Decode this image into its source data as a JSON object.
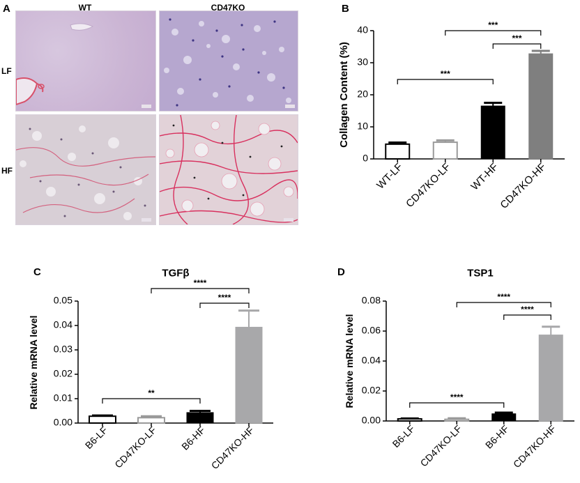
{
  "histology": {
    "panel_letter": "A",
    "columns": [
      "WT",
      "CD47KO"
    ],
    "rows": [
      "LF",
      "HF"
    ]
  },
  "chart_data": [
    {
      "panel_letter": "B",
      "type": "bar",
      "title": "",
      "ylabel": "Collagen Content (%)",
      "categories": [
        "WT-LF",
        "CD47KO-LF",
        "WT-HF",
        "CD47KO-HF"
      ],
      "values": [
        4.6,
        5.2,
        16.5,
        32.8
      ],
      "errors": [
        0.5,
        0.6,
        1.0,
        0.9
      ],
      "ylim": [
        0,
        40
      ],
      "yticks": [
        "0",
        "10",
        "20",
        "30",
        "40"
      ],
      "styles": [
        "open",
        "open-gray",
        "black",
        "gray"
      ],
      "significance": [
        {
          "from": 0,
          "to": 2,
          "label": "***"
        },
        {
          "from": 1,
          "to": 3,
          "label": "***"
        },
        {
          "from": 2,
          "to": 3,
          "label": "***"
        }
      ]
    },
    {
      "panel_letter": "C",
      "type": "bar",
      "title": "TGFβ",
      "ylabel": "Relative mRNA level",
      "categories": [
        "B6-LF",
        "CD47KO-LF",
        "B6-HF",
        "CD47KO-HF"
      ],
      "values": [
        0.0028,
        0.0022,
        0.0043,
        0.0393
      ],
      "errors": [
        0.0003,
        0.0006,
        0.0007,
        0.0068
      ],
      "ylim": [
        0,
        0.05
      ],
      "yticks": [
        "0.00",
        "0.01",
        "0.02",
        "0.03",
        "0.04",
        "0.05"
      ],
      "styles": [
        "open",
        "open-gray",
        "black",
        "gray-light"
      ],
      "significance": [
        {
          "from": 0,
          "to": 2,
          "label": "**"
        },
        {
          "from": 1,
          "to": 3,
          "label": "****"
        },
        {
          "from": 2,
          "to": 3,
          "label": "****"
        }
      ]
    },
    {
      "panel_letter": "D",
      "type": "bar",
      "title": "TSP1",
      "ylabel": "Relative mRNA level",
      "categories": [
        "B6-LF",
        "CD47KO-LF",
        "B6-HF",
        "CD47KO-HF"
      ],
      "values": [
        0.0014,
        0.0011,
        0.0048,
        0.0574
      ],
      "errors": [
        0.0003,
        0.0007,
        0.0008,
        0.0055
      ],
      "ylim": [
        0,
        0.08
      ],
      "yticks": [
        "0.00",
        "0.02",
        "0.04",
        "0.06",
        "0.08"
      ],
      "styles": [
        "open",
        "open-gray",
        "black",
        "gray-light"
      ],
      "significance": [
        {
          "from": 0,
          "to": 2,
          "label": "****"
        },
        {
          "from": 1,
          "to": 3,
          "label": "****"
        },
        {
          "from": 2,
          "to": 3,
          "label": "****"
        }
      ]
    }
  ]
}
